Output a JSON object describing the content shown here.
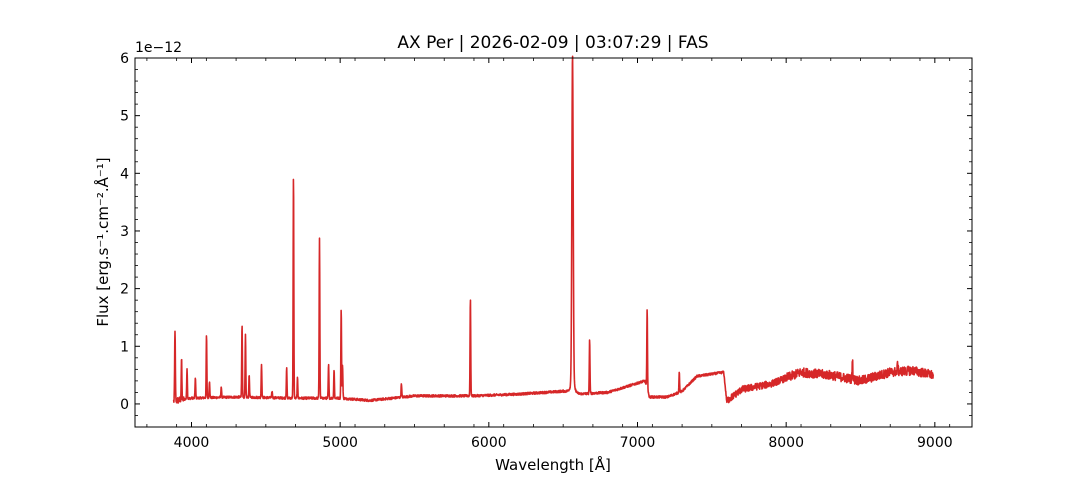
{
  "chart_data": {
    "type": "line",
    "title": "AX Per | 2026-02-09 | 03:07:29 | FAS",
    "xlabel": "Wavelength [Å]",
    "ylabel": "Flux [erg.s⁻¹.cm⁻².Å⁻¹]",
    "y_scale_label": "1e−12",
    "xlim": [
      3620,
      9250
    ],
    "ylim": [
      -0.4,
      6.0
    ],
    "x_ticks": [
      4000,
      5000,
      6000,
      7000,
      8000,
      9000
    ],
    "x_tick_labels": [
      "4000",
      "5000",
      "6000",
      "7000",
      "8000",
      "9000"
    ],
    "y_ticks": [
      0,
      1,
      2,
      3,
      4,
      5,
      6
    ],
    "y_tick_labels": [
      "0",
      "1",
      "2",
      "3",
      "4",
      "5",
      "6"
    ],
    "grid": false,
    "line_color": "#d62728",
    "series": [
      {
        "continuum": [
          [
            3880,
            0.05
          ],
          [
            4000,
            0.1
          ],
          [
            4300,
            0.12
          ],
          [
            4700,
            0.1
          ],
          [
            5000,
            0.1
          ],
          [
            5200,
            0.06
          ],
          [
            5500,
            0.14
          ],
          [
            5900,
            0.14
          ],
          [
            6200,
            0.17
          ],
          [
            6500,
            0.22
          ],
          [
            6600,
            0.17
          ],
          [
            6800,
            0.2
          ],
          [
            6950,
            0.32
          ],
          [
            7050,
            0.4
          ],
          [
            7080,
            0.12
          ],
          [
            7200,
            0.12
          ],
          [
            7300,
            0.22
          ],
          [
            7400,
            0.48
          ],
          [
            7580,
            0.55
          ],
          [
            7600,
            0.05
          ],
          [
            7700,
            0.25
          ],
          [
            7900,
            0.35
          ],
          [
            8100,
            0.55
          ],
          [
            8300,
            0.5
          ],
          [
            8500,
            0.4
          ],
          [
            8700,
            0.55
          ],
          [
            8850,
            0.58
          ],
          [
            8990,
            0.5
          ]
        ],
        "lines": [
          {
            "x": 3889,
            "y": 1.3
          },
          {
            "x": 3933,
            "y": 0.78
          },
          {
            "x": 3970,
            "y": 0.62
          },
          {
            "x": 4026,
            "y": 0.45
          },
          {
            "x": 4101,
            "y": 1.2
          },
          {
            "x": 4121,
            "y": 0.4
          },
          {
            "x": 4200,
            "y": 0.3
          },
          {
            "x": 4340,
            "y": 1.37
          },
          {
            "x": 4363,
            "y": 1.2
          },
          {
            "x": 4388,
            "y": 0.5
          },
          {
            "x": 4471,
            "y": 0.7
          },
          {
            "x": 4542,
            "y": 0.22
          },
          {
            "x": 4640,
            "y": 0.62
          },
          {
            "x": 4686,
            "y": 3.98
          },
          {
            "x": 4713,
            "y": 0.45
          },
          {
            "x": 4861,
            "y": 2.88
          },
          {
            "x": 4922,
            "y": 0.68
          },
          {
            "x": 4959,
            "y": 0.6
          },
          {
            "x": 5007,
            "y": 1.65
          },
          {
            "x": 5016,
            "y": 0.68
          },
          {
            "x": 5412,
            "y": 0.36
          },
          {
            "x": 5876,
            "y": 1.84
          },
          {
            "x": 6563,
            "y": 5.71
          },
          {
            "x": 6678,
            "y": 1.12
          },
          {
            "x": 7065,
            "y": 1.65
          },
          {
            "x": 7281,
            "y": 0.55
          },
          {
            "x": 8446,
            "y": 0.78
          },
          {
            "x": 8750,
            "y": 0.72
          }
        ]
      }
    ]
  }
}
